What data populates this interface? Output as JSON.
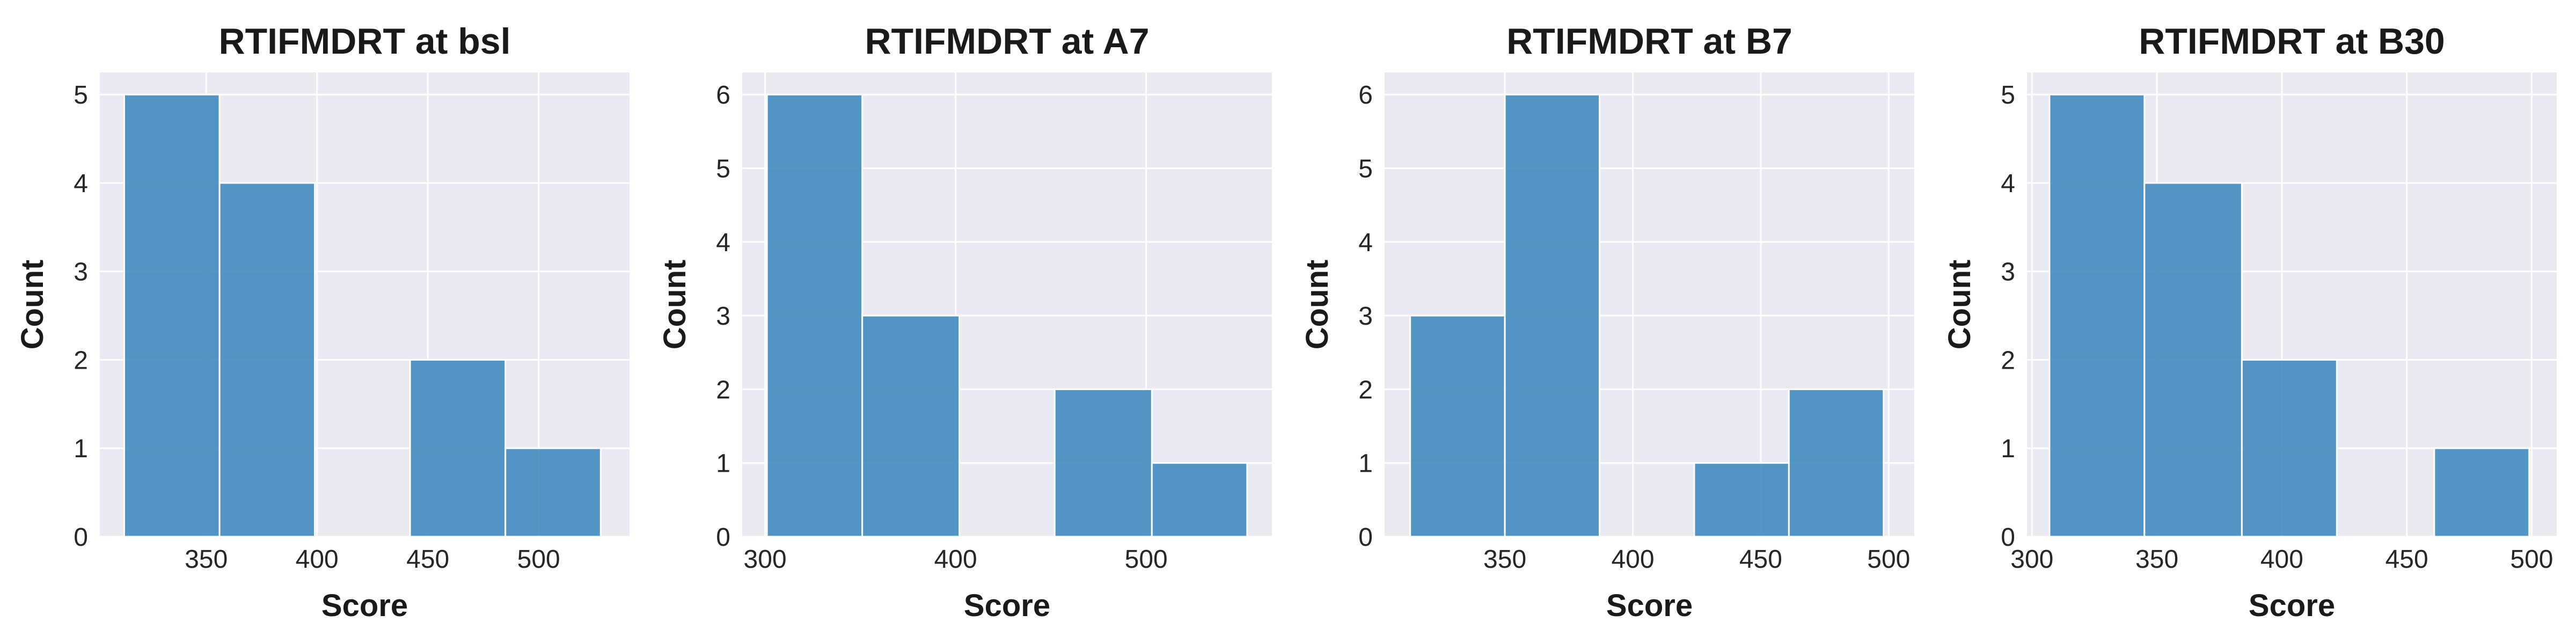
{
  "style": {
    "background": "#ffffff",
    "plot_background": "#eaeaf2",
    "grid_color": "#ffffff",
    "bar_color": "#3c87bc",
    "bar_edge_color": "#ffffff"
  },
  "chart_data": [
    {
      "type": "bar",
      "title": "RTIFMDRT at bsl",
      "xlabel": "Score",
      "ylabel": "Count",
      "xlim": [
        302,
        541
      ],
      "ylim": [
        0,
        5.25
      ],
      "xticks": [
        350,
        400,
        450,
        500
      ],
      "yticks": [
        0,
        1,
        2,
        3,
        4,
        5
      ],
      "grid": true,
      "bins": [
        {
          "x0": 313,
          "x1": 356,
          "count": 5
        },
        {
          "x0": 356,
          "x1": 399,
          "count": 4
        },
        {
          "x0": 399,
          "x1": 442,
          "count": 0
        },
        {
          "x0": 442,
          "x1": 485,
          "count": 2
        },
        {
          "x0": 485,
          "x1": 528,
          "count": 1
        }
      ]
    },
    {
      "type": "bar",
      "title": "RTIFMDRT at A7",
      "xlabel": "Score",
      "ylabel": "Count",
      "xlim": [
        288,
        566
      ],
      "ylim": [
        0,
        6.3
      ],
      "xticks": [
        300,
        400,
        500
      ],
      "yticks": [
        0,
        1,
        2,
        3,
        4,
        5,
        6
      ],
      "grid": true,
      "bins": [
        {
          "x0": 301,
          "x1": 351,
          "count": 6
        },
        {
          "x0": 351,
          "x1": 402,
          "count": 3
        },
        {
          "x0": 402,
          "x1": 452,
          "count": 0
        },
        {
          "x0": 452,
          "x1": 503,
          "count": 2
        },
        {
          "x0": 503,
          "x1": 553,
          "count": 1
        }
      ]
    },
    {
      "type": "bar",
      "title": "RTIFMDRT at B7",
      "xlabel": "Score",
      "ylabel": "Count",
      "xlim": [
        303,
        510
      ],
      "ylim": [
        0,
        6.3
      ],
      "xticks": [
        350,
        400,
        450,
        500
      ],
      "yticks": [
        0,
        1,
        2,
        3,
        4,
        5,
        6
      ],
      "grid": true,
      "bins": [
        {
          "x0": 313,
          "x1": 350,
          "count": 3
        },
        {
          "x0": 350,
          "x1": 387,
          "count": 6
        },
        {
          "x0": 387,
          "x1": 424,
          "count": 0
        },
        {
          "x0": 424,
          "x1": 461,
          "count": 1
        },
        {
          "x0": 461,
          "x1": 498,
          "count": 2
        }
      ]
    },
    {
      "type": "bar",
      "title": "RTIFMDRT at B30",
      "xlabel": "Score",
      "ylabel": "Count",
      "xlim": [
        298,
        510
      ],
      "ylim": [
        0,
        5.25
      ],
      "xticks": [
        300,
        350,
        400,
        450,
        500
      ],
      "yticks": [
        0,
        1,
        2,
        3,
        4,
        5
      ],
      "grid": true,
      "bins": [
        {
          "x0": 307,
          "x1": 345,
          "count": 5
        },
        {
          "x0": 345,
          "x1": 384,
          "count": 4
        },
        {
          "x0": 384,
          "x1": 422,
          "count": 2
        },
        {
          "x0": 422,
          "x1": 461,
          "count": 0
        },
        {
          "x0": 461,
          "x1": 499,
          "count": 1
        }
      ]
    }
  ]
}
